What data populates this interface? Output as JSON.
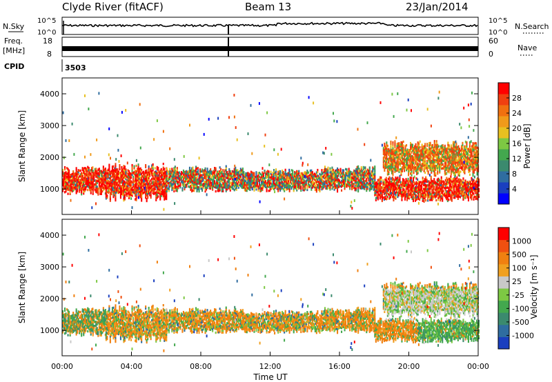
{
  "header": {
    "station": "Clyde River (fitACF)",
    "beam": "Beam 13",
    "date": "23/Jan/2014"
  },
  "top_panels": {
    "nsky_label": "N.Sky",
    "nsky_ticks": [
      "10^5",
      "10^0"
    ],
    "nsearch_label": "N.Search",
    "nsearch_ticks": [
      "10^5",
      "10^0"
    ],
    "freq_label": "Freq.",
    "freq_unit": "[MHz]",
    "freq_ticks": [
      "18",
      "8"
    ],
    "nave_label": "Nave",
    "nave_ticks": [
      "60",
      "0"
    ],
    "cpid_label": "CPID",
    "cpid_value": "3503"
  },
  "chart_data": [
    {
      "type": "heatmap",
      "name": "power",
      "ylabel": "Slant Range [km]",
      "ylim": [
        200,
        4500
      ],
      "yticks": [
        "4000",
        "3000",
        "2000",
        "1000"
      ],
      "xlim": [
        0,
        24
      ],
      "colorbar": {
        "label": "Power [dB]",
        "ticks": [
          "28",
          "24",
          "20",
          "16",
          "12",
          "8",
          "4"
        ],
        "colors": [
          "#0000ff",
          "#1a3fbf",
          "#2f6da0",
          "#3b8a6e",
          "#43a84e",
          "#7dc843",
          "#e8c020",
          "#f09a1a",
          "#f07010",
          "#f04010",
          "#ff0000"
        ]
      },
      "bands": [
        {
          "t": [
            0.0,
            2.5
          ],
          "r": [
            800,
            1700
          ],
          "level": "high"
        },
        {
          "t": [
            2.5,
            6.0
          ],
          "r": [
            600,
            1800
          ],
          "level": "high"
        },
        {
          "t": [
            6.0,
            10.5
          ],
          "r": [
            900,
            1700
          ],
          "level": "mid"
        },
        {
          "t": [
            10.5,
            15.0
          ],
          "r": [
            900,
            1600
          ],
          "level": "mid"
        },
        {
          "t": [
            15.0,
            18.0
          ],
          "r": [
            900,
            1700
          ],
          "level": "mid"
        },
        {
          "t": [
            18.0,
            24.0
          ],
          "r": [
            600,
            1400
          ],
          "level": "high"
        },
        {
          "t": [
            18.5,
            24.0
          ],
          "r": [
            1400,
            2500
          ],
          "level": "upper"
        }
      ]
    },
    {
      "type": "heatmap",
      "name": "velocity",
      "ylabel": "Slant Range [km]",
      "ylim": [
        200,
        4500
      ],
      "yticks": [
        "4000",
        "3000",
        "2000",
        "1000"
      ],
      "xlim": [
        0,
        24
      ],
      "xticks": [
        "00:00",
        "04:00",
        "08:00",
        "12:00",
        "16:00",
        "20:00",
        "00:00"
      ],
      "xlabel": "Time UT",
      "colorbar": {
        "label": "Velocity [m s⁻¹]",
        "ticks": [
          "1000",
          "500",
          "100",
          "25",
          "-25",
          "-100",
          "-500",
          "-1000"
        ],
        "colors": [
          "#1a3fbf",
          "#2f6da0",
          "#3b8a6e",
          "#43a84e",
          "#7dc843",
          "#c8c8c8",
          "#f0a020",
          "#f08010",
          "#f05010",
          "#ff0000"
        ]
      }
    }
  ]
}
